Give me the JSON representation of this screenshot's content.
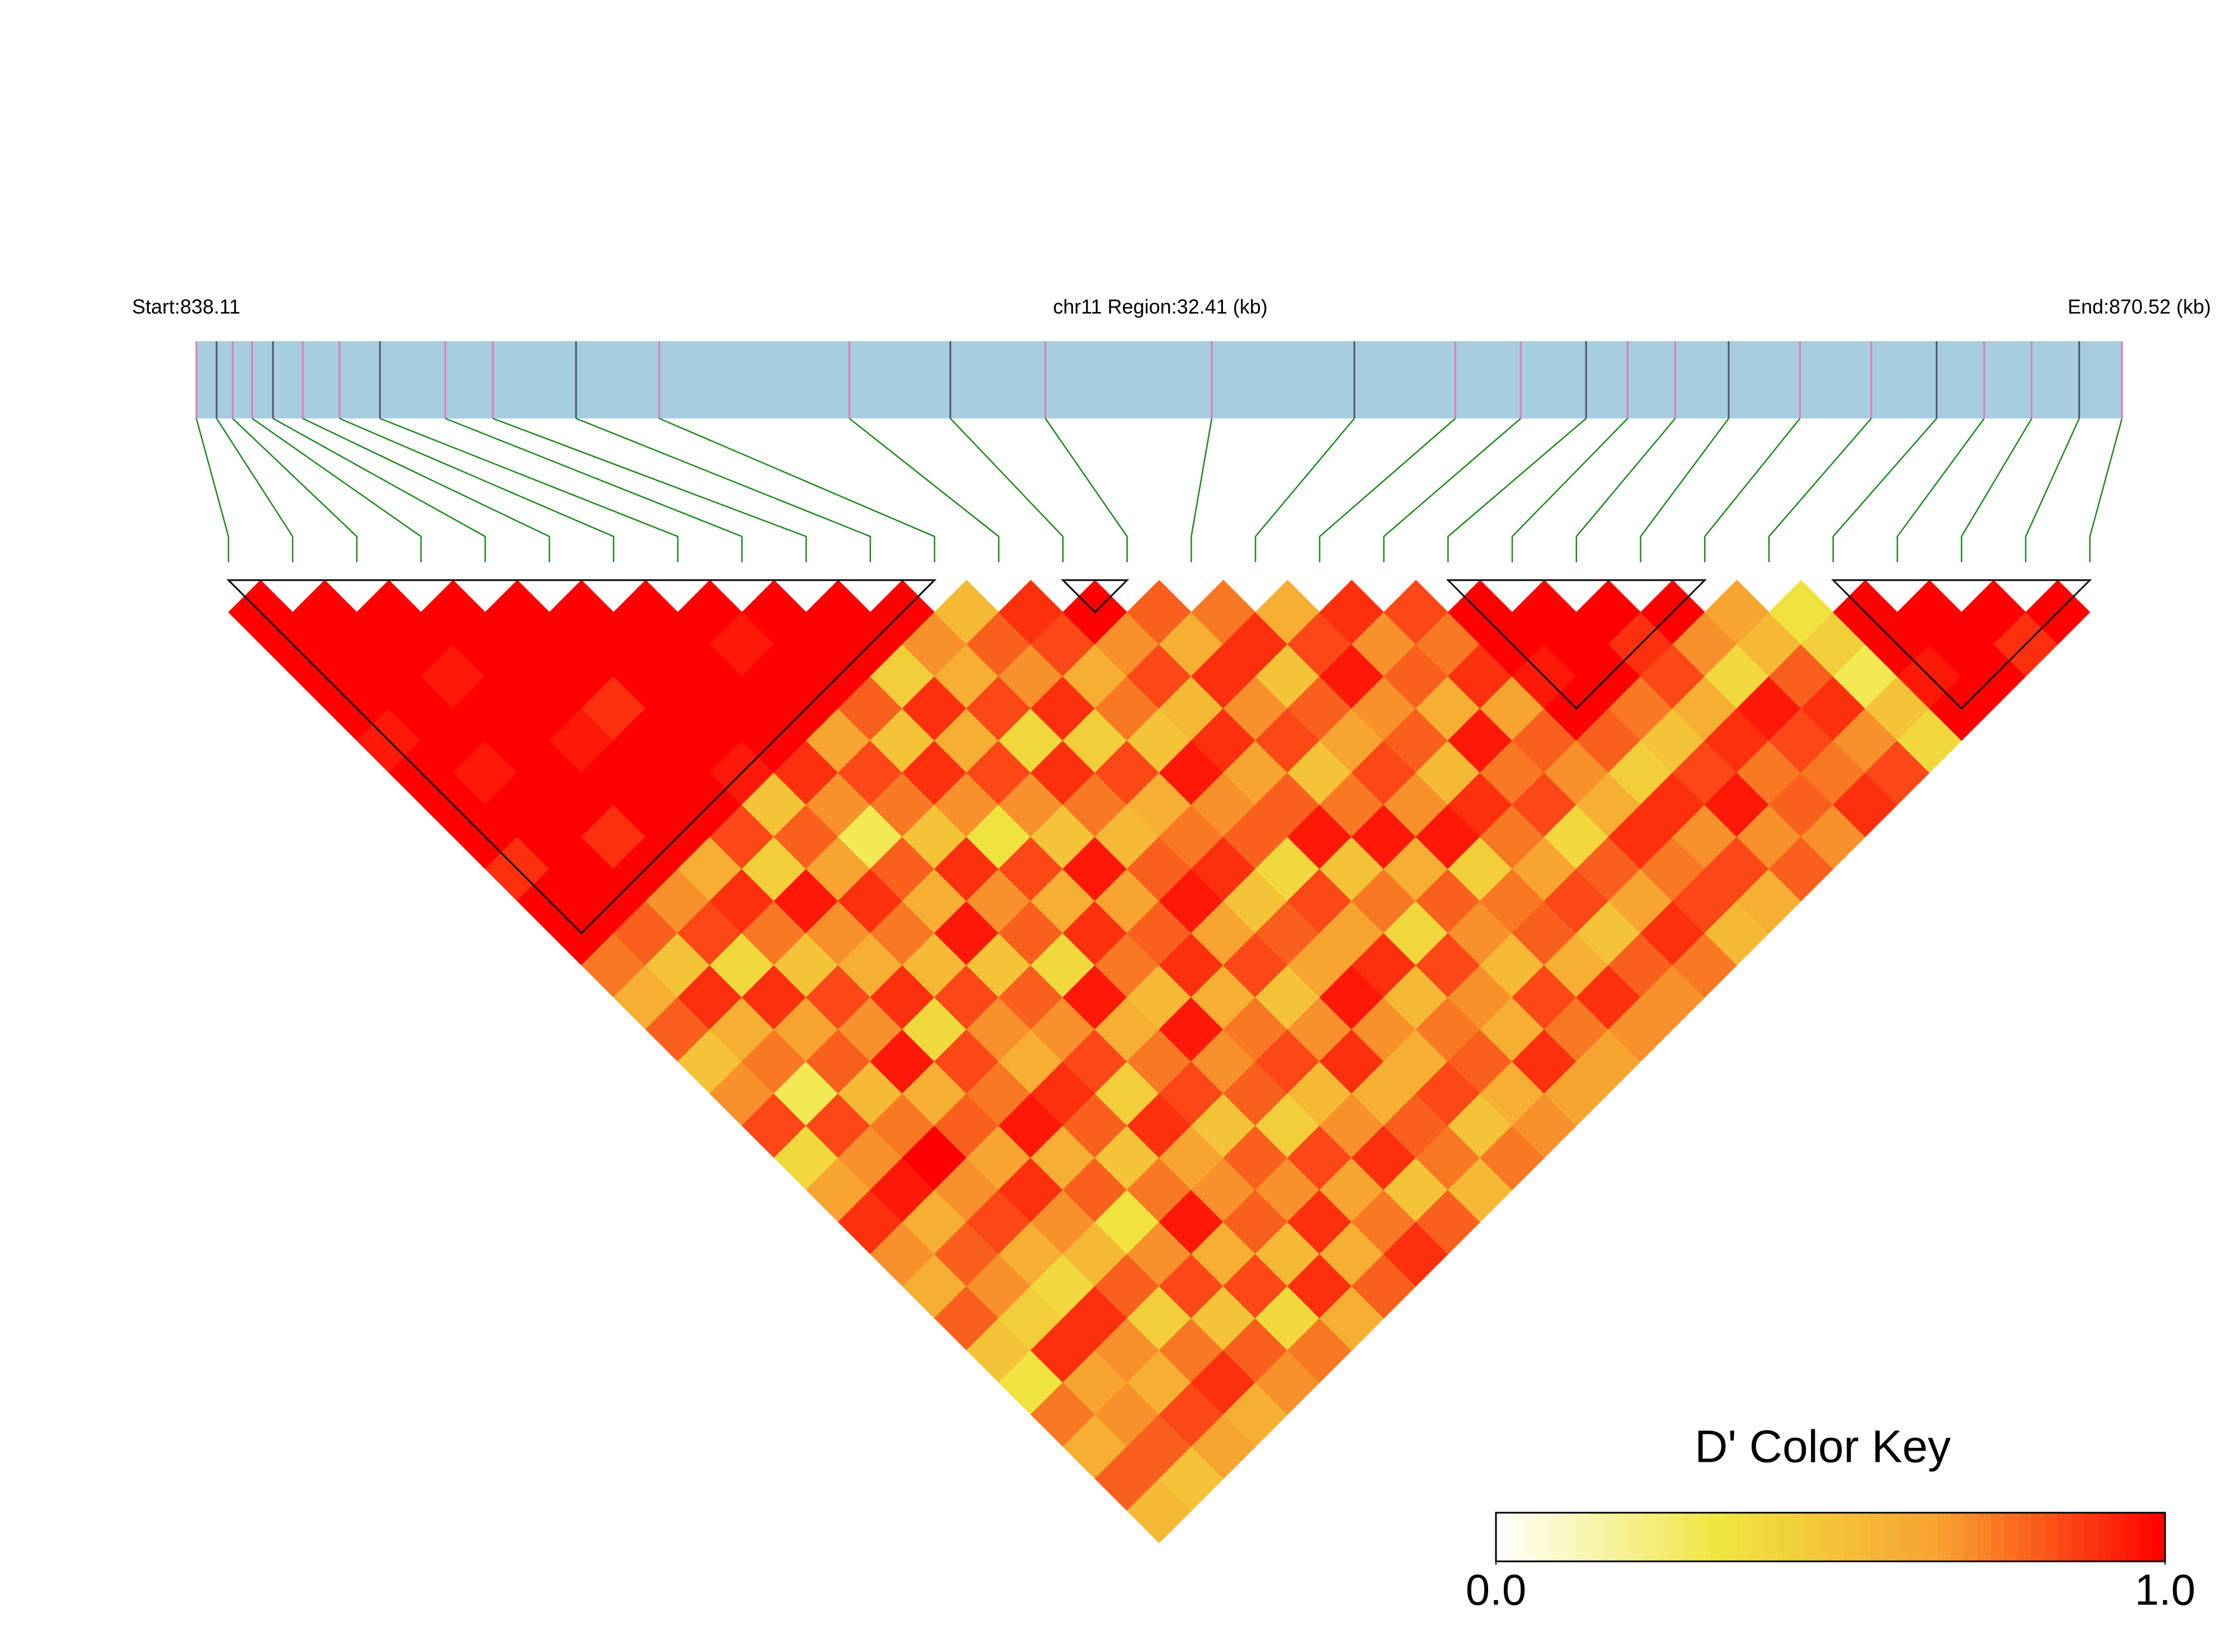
{
  "chart_data": {
    "type": "ld_heatmap",
    "header_start": "Start:838.11",
    "header_region": "chr11 Region:32.41 (kb)",
    "header_end": "End:870.52 (kb)",
    "xlim": [
      838.11,
      870.52
    ],
    "snp_positions": [
      838.11,
      838.45,
      838.72,
      839.05,
      839.4,
      839.9,
      840.52,
      841.2,
      842.3,
      843.1,
      844.5,
      845.9,
      849.1,
      850.8,
      852.4,
      855.2,
      857.6,
      859.3,
      860.4,
      861.5,
      862.2,
      863.0,
      863.9,
      865.1,
      866.3,
      867.4,
      868.2,
      869.0,
      869.8,
      870.52
    ],
    "dprime": [
      [
        1,
        1,
        1,
        1,
        0.95,
        1,
        1,
        1,
        0.9,
        1,
        1,
        0.75,
        0.6,
        0.8,
        0.5,
        0.7,
        0.85,
        0.4,
        0.65,
        0.9,
        0.7,
        0.6,
        0.8,
        0.5,
        0.35,
        0.75,
        0.6,
        0.8,
        0.55
      ],
      [
        1,
        1,
        1,
        1,
        1,
        0.95,
        1,
        1,
        1,
        1,
        0.8,
        0.5,
        0.9,
        0.6,
        0.75,
        0.3,
        0.85,
        0.7,
        0.95,
        0.6,
        0.8,
        0.7,
        0.45,
        0.9,
        0.65,
        0.7,
        0.8,
        0.5
      ],
      [
        1,
        1,
        0.95,
        1,
        1,
        1,
        1,
        0.9,
        1,
        0.7,
        0.85,
        0.4,
        0.9,
        0.65,
        0.8,
        0.55,
        0.75,
        1,
        0.7,
        0.85,
        0.6,
        0.4,
        0.9,
        0.7,
        0.6,
        0.85,
        0.65
      ],
      [
        1,
        1,
        1,
        1,
        0.95,
        1,
        1,
        1,
        0.6,
        0.9,
        0.75,
        0.5,
        0.85,
        0.7,
        0.95,
        0.6,
        0.8,
        0.65,
        0.9,
        0.7,
        0.55,
        0.8,
        0.45,
        0.75,
        0.9,
        0.6
      ],
      [
        1,
        1,
        1,
        0.9,
        1,
        1,
        1,
        0.85,
        0.45,
        0.95,
        0.7,
        0.6,
        0.9,
        0.4,
        0.85,
        0.75,
        0.95,
        0.6,
        0.8,
        0.35,
        0.7,
        0.85,
        0.5,
        0.8,
        0.7
      ],
      [
        1,
        1,
        1,
        1,
        1,
        0.95,
        0.5,
        0.8,
        0.65,
        0.9,
        0.75,
        0.55,
        0.85,
        0.7,
        0.6,
        0.9,
        0.8,
        0.5,
        0.75,
        0.95,
        0.6,
        0.85,
        0.4,
        0.75
      ],
      [
        1,
        1,
        1,
        1,
        1,
        0.9,
        0.7,
        0.3,
        0.8,
        0.6,
        0.95,
        0.5,
        0.8,
        0.7,
        0.85,
        0.45,
        0.9,
        0.65,
        0.7,
        0.8,
        0.55,
        0.9,
        0.6
      ],
      [
        1,
        0.95,
        1,
        1,
        0.65,
        0.85,
        0.75,
        0.5,
        0.9,
        0.7,
        0.8,
        0.4,
        0.95,
        0.6,
        0.75,
        0.85,
        0.5,
        0.8,
        0.7,
        0.9,
        0.6,
        0.8
      ],
      [
        1,
        1,
        1,
        0.8,
        0.5,
        0.9,
        0.7,
        0.35,
        0.85,
        0.6,
        0.9,
        0.75,
        0.55,
        0.95,
        0.7,
        0.8,
        0.45,
        0.85,
        0.65,
        0.75,
        0.9
      ],
      [
        1,
        1,
        0.45,
        0.9,
        0.6,
        0.85,
        0.7,
        0.5,
        0.95,
        0.65,
        0.8,
        0.9,
        0.6,
        0.75,
        0.85,
        0.55,
        0.7,
        0.9,
        0.5,
        0.8
      ],
      [
        1,
        0.7,
        0.6,
        0.85,
        0.4,
        0.9,
        0.75,
        0.55,
        0.8,
        0.95,
        0.65,
        0.85,
        0.5,
        0.7,
        0.9,
        0.6,
        0.8,
        0.75,
        0.55
      ],
      [
        0.55,
        0.8,
        0.7,
        0.9,
        0.45,
        0.85,
        0.6,
        0.75,
        0.9,
        0.5,
        0.8,
        0.65,
        0.95,
        0.7,
        0.6,
        0.85,
        0.5,
        0.75
      ],
      [
        0.9,
        0.85,
        0.6,
        0.75,
        0.5,
        0.95,
        0.7,
        0.8,
        0.4,
        0.85,
        0.65,
        0.9,
        0.55,
        0.75,
        0.8,
        0.6,
        0.7
      ],
      [
        1,
        0.7,
        0.85,
        0.55,
        0.9,
        0.65,
        0.8,
        0.95,
        0.5,
        0.75,
        0.4,
        0.85,
        0.7,
        0.6,
        0.9,
        0.65
      ],
      [
        0.8,
        0.6,
        0.9,
        0.7,
        0.85,
        0.5,
        0.75,
        0.95,
        0.6,
        0.8,
        0.7,
        0.55,
        0.85,
        0.75,
        0.65
      ],
      [
        0.75,
        0.9,
        0.5,
        0.8,
        0.65,
        0.85,
        0.7,
        0.95,
        0.45,
        0.75,
        0.8,
        0.6,
        0.9,
        0.7
      ],
      [
        0.6,
        0.85,
        0.95,
        0.7,
        0.8,
        0.55,
        0.9,
        0.75,
        0.65,
        0.85,
        0.5,
        0.8,
        0.7
      ],
      [
        0.9,
        0.7,
        0.8,
        0.6,
        0.95,
        0.75,
        0.85,
        0.4,
        0.8,
        0.65,
        0.9,
        0.75
      ],
      [
        0.85,
        0.75,
        0.9,
        0.65,
        0.8,
        0.7,
        0.6,
        0.9,
        0.75,
        0.85,
        0.55
      ],
      [
        1,
        1,
        0.95,
        1,
        0.8,
        0.45,
        0.9,
        0.7,
        0.85,
        0.6
      ],
      [
        1,
        1,
        1,
        0.75,
        0.5,
        0.85,
        0.95,
        0.7,
        0.8
      ],
      [
        1,
        0.9,
        0.85,
        0.6,
        0.9,
        0.75,
        0.8,
        0.7
      ],
      [
        1,
        0.7,
        0.4,
        0.95,
        0.85,
        0.75,
        0.9
      ],
      [
        0.65,
        0.55,
        0.8,
        0.9,
        0.7,
        0.85
      ],
      [
        0.35,
        0.45,
        0.3,
        0.5,
        0.4
      ],
      [
        1,
        1,
        0.95,
        1
      ],
      [
        1,
        1,
        1
      ],
      [
        1,
        0.9
      ],
      [
        1
      ]
    ],
    "blocks": [
      [
        0,
        11
      ],
      [
        13,
        14
      ],
      [
        19,
        23
      ],
      [
        25,
        29
      ]
    ],
    "color_scale": [
      "#ffffff",
      "#f0e640",
      "#f7a030",
      "#ff0000"
    ],
    "colorbar": {
      "title": "D' Color Key",
      "clim": [
        0,
        1
      ],
      "ticks": [
        {
          "value": 0,
          "label": "0.0"
        },
        {
          "value": 1,
          "label": "1.0"
        }
      ]
    }
  }
}
